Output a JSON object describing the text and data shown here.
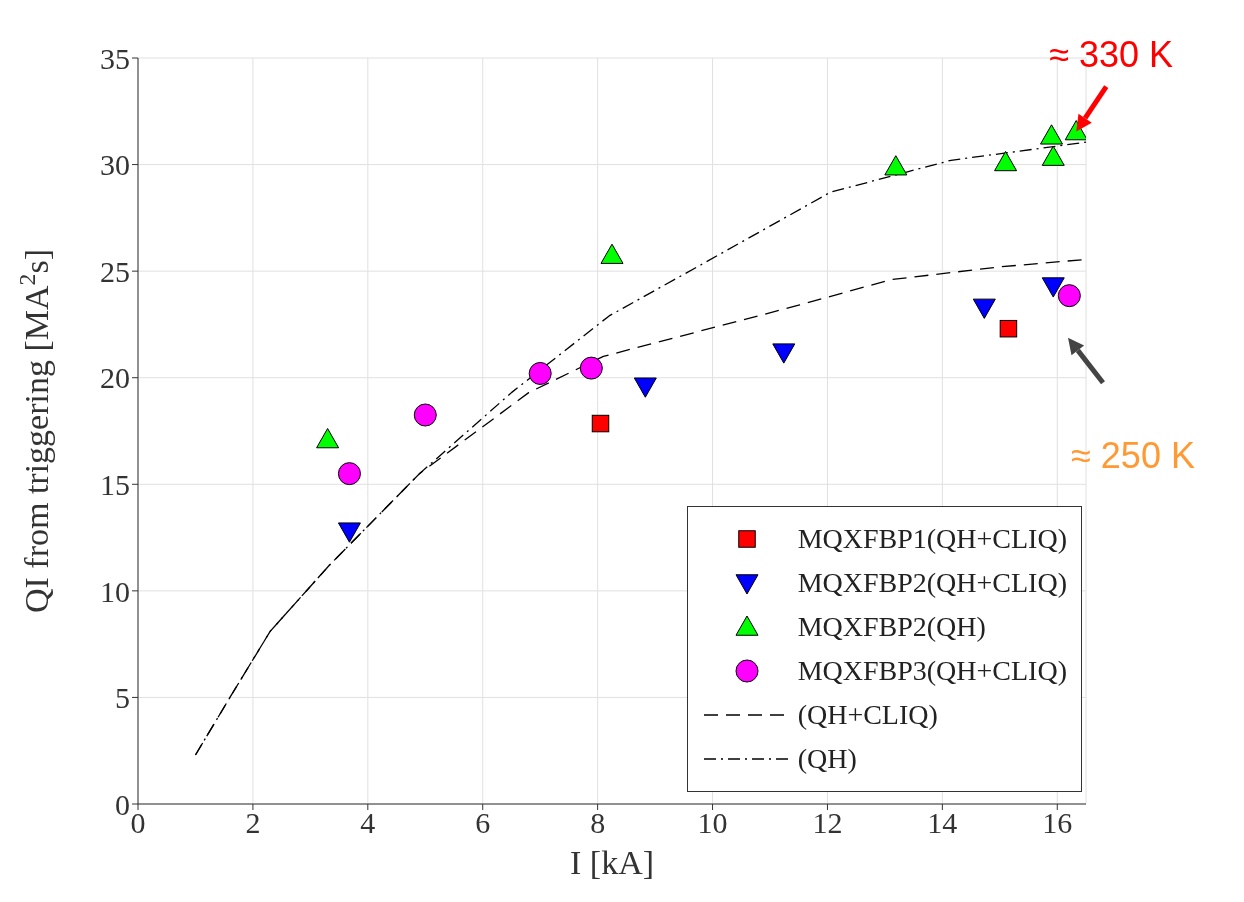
{
  "chart_data": {
    "type": "scatter",
    "xlabel": "I [kA]",
    "ylabel": "QI from triggering [MA$^{2}$s]",
    "xlim": [
      0,
      16.5
    ],
    "xticks": [
      0,
      2,
      4,
      6,
      8,
      10,
      12,
      14,
      16
    ],
    "ylim": [
      0,
      35
    ],
    "yticks": [
      0,
      5,
      10,
      15,
      20,
      25,
      30,
      35
    ],
    "grid": true,
    "legend": "bottom right",
    "series": [
      {
        "name": "MQXFBP1(QH+CLIQ)",
        "marker": "square",
        "color": "#ff0000",
        "x": [
          8.05,
          15.15
        ],
        "values": [
          17.85,
          22.3
        ]
      },
      {
        "name": "MQXFBP2(QH+CLIQ)",
        "marker": "triangle-down",
        "color": "#0000ff",
        "x": [
          3.68,
          8.83,
          11.24,
          14.73,
          15.93
        ],
        "values": [
          12.8,
          19.6,
          21.2,
          23.3,
          24.3
        ]
      },
      {
        "name": "MQXFBP2(QH)",
        "marker": "triangle",
        "color": "#00ff00",
        "x": [
          3.3,
          8.25,
          13.19,
          15.1,
          15.9,
          15.93,
          16.33
        ],
        "values": [
          17.1,
          25.75,
          29.9,
          30.1,
          31.35,
          30.35,
          31.55
        ]
      },
      {
        "name": "MQXFBP3(QH+CLIQ)",
        "marker": "circle",
        "color": "#ff00ff",
        "x": [
          3.68,
          5.0,
          7.0,
          7.89,
          16.21
        ],
        "values": [
          15.5,
          18.25,
          20.2,
          20.45,
          23.85
        ]
      },
      {
        "name": "(QH+CLIQ)",
        "type": "line",
        "marker": "none",
        "line_style": "dashed",
        "color": "#000000",
        "x": [
          1.0,
          1.6,
          2.3,
          3.33,
          4.9,
          6.8,
          8.1,
          9.8,
          11.5,
          13.1,
          15.0,
          16.5
        ],
        "values": [
          2.3,
          5.0,
          8.1,
          11.2,
          15.5,
          19.3,
          21.0,
          22.2,
          23.4,
          24.6,
          25.2,
          25.55
        ]
      },
      {
        "name": "(QH)",
        "type": "line",
        "marker": "none",
        "line_style": "dashdot",
        "color": "#000000",
        "x": [
          1.0,
          1.6,
          2.3,
          3.33,
          4.9,
          6.5,
          8.2,
          9.8,
          12.05,
          14.15,
          16.5
        ],
        "values": [
          2.3,
          5.0,
          8.1,
          11.2,
          15.5,
          19.3,
          22.9,
          25.3,
          28.7,
          30.2,
          31.05
        ]
      }
    ],
    "annotations": [
      {
        "text": "≈ 330 K",
        "x": 16.33,
        "y": 31.55
      },
      "≈ 250 K"
    ]
  }
}
